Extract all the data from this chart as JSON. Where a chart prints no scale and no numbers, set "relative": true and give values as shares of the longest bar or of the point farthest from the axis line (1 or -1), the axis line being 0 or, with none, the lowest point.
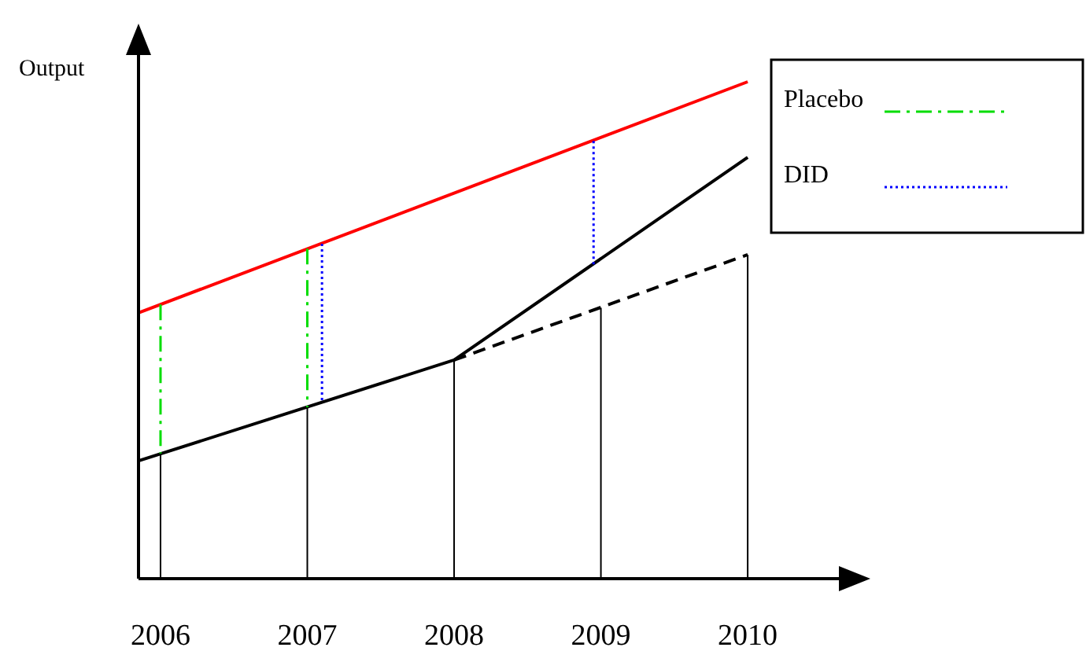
{
  "chart_data": {
    "type": "line",
    "relative": true,
    "ylabel": "Output",
    "xlim": [
      2005.85,
      2010.75
    ],
    "xticks": [
      2006,
      2007,
      2008,
      2009,
      2010
    ],
    "legend": "top right",
    "grid": false,
    "series": [
      {
        "color": "#ff0000",
        "line_style": "solid",
        "x": [
          2005.85,
          2010
        ],
        "values": [
          0.535,
          1
        ]
      },
      {
        "color": "#000000",
        "line_style": "solid",
        "x": [
          2005.85,
          2008,
          2010
        ],
        "values": [
          0.237,
          0.44,
          0.848
        ]
      },
      {
        "color": "#000000",
        "line_style": "dashed",
        "x": [
          2008,
          2010
        ],
        "values": [
          0.44,
          0.652
        ]
      },
      {
        "color": "#000000",
        "line_style": "solid",
        "x": [
          2006,
          2006,
          2006.5,
          2007,
          2007,
          2007.5,
          2008,
          2008,
          2008.5,
          2009,
          2009,
          2009.5,
          2010,
          2010
        ],
        "values": [
          0,
          0.252,
          null,
          0,
          0.345,
          null,
          0,
          0.44,
          null,
          0,
          0.545,
          null,
          0,
          0.652
        ]
      },
      {
        "name": "Placebo",
        "color": "#00dd00",
        "line_style": "dashdot",
        "x": [
          2006,
          2006,
          2006.5,
          2007,
          2007
        ],
        "values": [
          0.552,
          0.252,
          null,
          0.664,
          0.345
        ]
      },
      {
        "name": "DID",
        "color": "#0000ff",
        "line_style": "dotted",
        "x": [
          2007.1,
          2007.1,
          2008,
          2008.95,
          2008.95
        ],
        "values": [
          0.674,
          0.354,
          null,
          0.881,
          0.631
        ]
      }
    ]
  }
}
